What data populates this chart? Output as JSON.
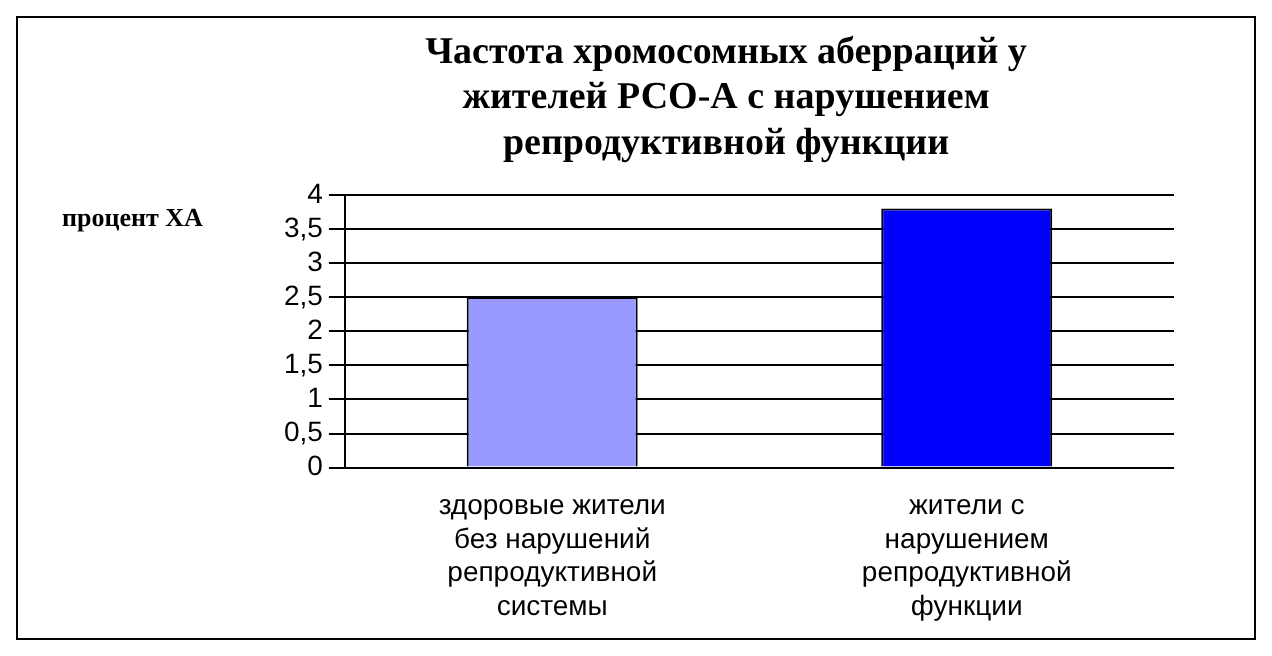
{
  "chart_data": {
    "type": "bar",
    "title": "Частота хромосомных аберраций у жителей РСО-А с нарушением репродуктивной функции",
    "ylabel": "процент ХА",
    "categories": [
      "здоровые жители без нарушений репродуктивной системы",
      "жители с нарушением репродуктивной функции"
    ],
    "values": [
      2.5,
      3.8
    ],
    "colors": [
      "#9999ff",
      "#0000ff"
    ],
    "ylim": [
      0,
      4
    ],
    "yticks": [
      0,
      {
        "value": 0.5,
        "label": "0,5"
      },
      1,
      {
        "value": 1.5,
        "label": "1,5"
      },
      2,
      {
        "value": 2.5,
        "label": "2,5"
      },
      3,
      {
        "value": 3.5,
        "label": "3,5"
      },
      4
    ],
    "grid": "y"
  }
}
